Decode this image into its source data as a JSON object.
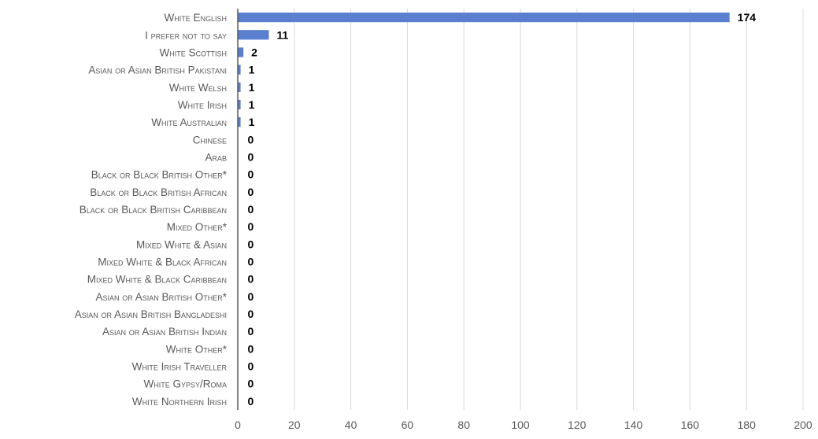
{
  "chart_data": {
    "type": "bar",
    "orientation": "horizontal",
    "title": "",
    "xlabel": "",
    "ylabel": "",
    "xlim": [
      0,
      200
    ],
    "x_ticks": [
      0,
      20,
      40,
      60,
      80,
      100,
      120,
      140,
      160,
      180,
      200
    ],
    "grid": true,
    "legend": "none",
    "bar_color": "#5b7fcf",
    "categories": [
      "White English",
      "I prefer not to say",
      "White Scottish",
      "Asian or Asian British Pakistani",
      "White Welsh",
      "White Irish",
      "White Australian",
      "Chinese",
      "Arab",
      "Black or Black British Other*",
      "Black or Black British African",
      "Black or Black British Caribbean",
      "Mixed Other*",
      "Mixed White & Asian",
      "Mixed White & Black African",
      "Mixed White & Black Caribbean",
      "Asian or Asian British Other*",
      "Asian or Asian British Bangladeshi",
      "Asian or Asian British Indian",
      "White Other*",
      "White Irish Traveller",
      "White Gypsy/Roma",
      "White Northern Irish"
    ],
    "values": [
      174,
      11,
      2,
      1,
      1,
      1,
      1,
      0,
      0,
      0,
      0,
      0,
      0,
      0,
      0,
      0,
      0,
      0,
      0,
      0,
      0,
      0,
      0
    ]
  }
}
